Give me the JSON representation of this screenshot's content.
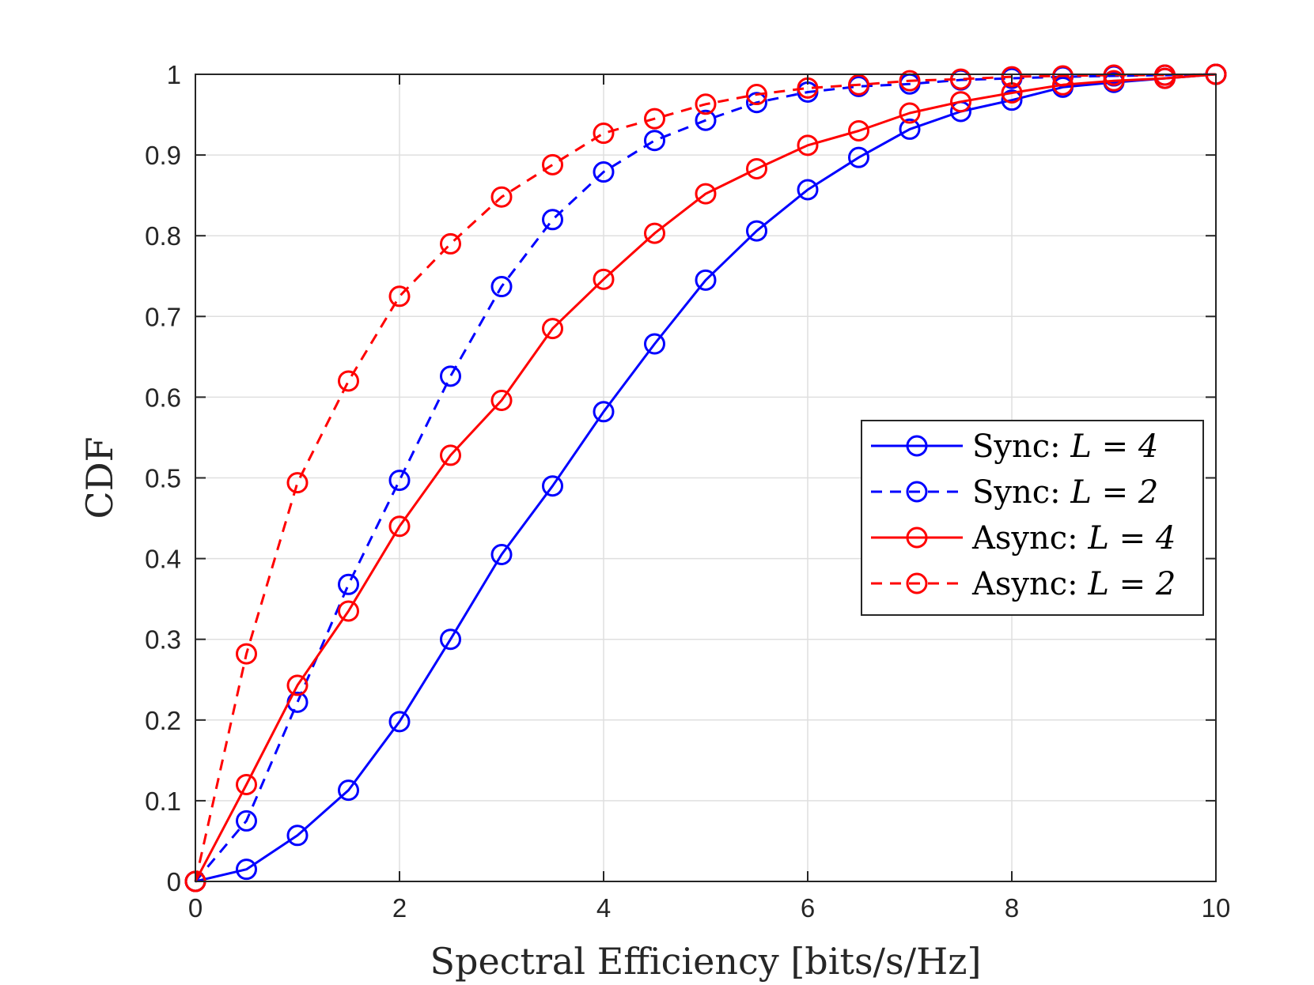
{
  "chart_data": {
    "type": "line",
    "xlabel": "Spectral Efficiency [bits/s/Hz]",
    "ylabel": "CDF",
    "xlim": [
      0,
      10
    ],
    "ylim": [
      0,
      1
    ],
    "x_ticks": [
      "0",
      "2",
      "4",
      "6",
      "8",
      "10"
    ],
    "y_ticks": [
      "0",
      "0.1",
      "0.2",
      "0.3",
      "0.4",
      "0.5",
      "0.6",
      "0.7",
      "0.8",
      "0.9",
      "1"
    ],
    "grid": true,
    "legend_position": "center-right",
    "x": [
      0,
      0.5,
      1,
      1.5,
      2,
      2.5,
      3,
      3.5,
      4,
      4.5,
      5,
      5.5,
      6,
      6.5,
      7,
      7.5,
      8,
      8.5,
      9,
      9.5,
      10
    ],
    "series": [
      {
        "name": "Sync: L = 4",
        "legend_prefix": "Sync:",
        "legend_math": "L = 4",
        "color": "#0000ff",
        "line_style": "solid",
        "marker": "circle",
        "values": [
          0,
          0.015,
          0.057,
          0.113,
          0.198,
          0.3,
          0.405,
          0.49,
          0.582,
          0.666,
          0.745,
          0.806,
          0.857,
          0.897,
          0.932,
          0.954,
          0.968,
          0.984,
          0.99,
          0.995,
          1.0
        ]
      },
      {
        "name": "Sync: L = 2",
        "legend_prefix": "Sync:",
        "legend_math": "L = 2",
        "color": "#0000ff",
        "line_style": "dashed",
        "marker": "circle",
        "values": [
          0,
          0.075,
          0.222,
          0.368,
          0.497,
          0.626,
          0.737,
          0.82,
          0.879,
          0.918,
          0.943,
          0.965,
          0.978,
          0.985,
          0.988,
          0.993,
          0.995,
          0.997,
          0.998,
          0.999,
          1.0
        ]
      },
      {
        "name": "Async: L = 4",
        "legend_prefix": "Async:",
        "legend_math": "L = 4",
        "color": "#ff0000",
        "line_style": "solid",
        "marker": "circle",
        "values": [
          0,
          0.12,
          0.243,
          0.335,
          0.44,
          0.528,
          0.596,
          0.685,
          0.746,
          0.803,
          0.852,
          0.883,
          0.912,
          0.93,
          0.952,
          0.966,
          0.977,
          0.987,
          0.992,
          0.995,
          1.0
        ]
      },
      {
        "name": "Async: L = 2",
        "legend_prefix": "Async:",
        "legend_math": "L = 2",
        "color": "#ff0000",
        "line_style": "dashed",
        "marker": "circle",
        "values": [
          0,
          0.282,
          0.494,
          0.62,
          0.725,
          0.79,
          0.848,
          0.888,
          0.927,
          0.945,
          0.963,
          0.975,
          0.983,
          0.987,
          0.992,
          0.994,
          0.997,
          0.998,
          0.999,
          0.999,
          1.0
        ]
      }
    ]
  }
}
